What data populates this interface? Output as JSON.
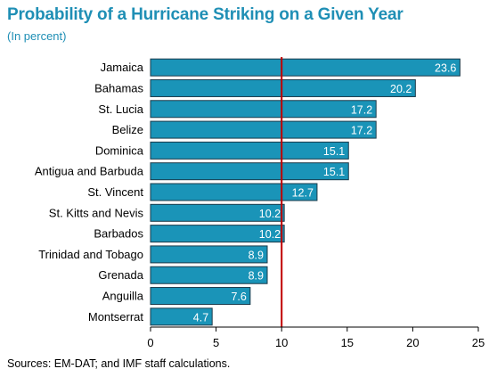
{
  "title": "Probability of a Hurricane Striking on a Given Year",
  "subtitle": "(In percent)",
  "source": "Sources: EM-DAT; and IMF staff calculations.",
  "colors": {
    "title": "#1f8fb5",
    "bar": "#1a94b8",
    "bar_edge": "#1a3a4a",
    "reference_line": "#c00000",
    "axis": "#000000"
  },
  "chart_data": {
    "type": "bar",
    "orientation": "horizontal",
    "categories": [
      "Jamaica",
      "Bahamas",
      "St. Lucia",
      "Belize",
      "Dominica",
      "Antigua and Barbuda",
      "St. Vincent",
      "St. Kitts and Nevis",
      "Barbados",
      "Trinidad and Tobago",
      "Grenada",
      "Anguilla",
      "Montserrat"
    ],
    "values": [
      23.6,
      20.2,
      17.2,
      17.2,
      15.1,
      15.1,
      12.7,
      10.2,
      10.2,
      8.9,
      8.9,
      7.6,
      4.7
    ],
    "data_labels": [
      "23.6",
      "20.2",
      "17.2",
      "17.2",
      "15.1",
      "15.1",
      "12.7",
      "10.2",
      "10.2",
      "8.9",
      "8.9",
      "7.6",
      "4.7"
    ],
    "title": "Probability of a Hurricane Striking on a Given Year",
    "subtitle": "(In percent)",
    "xlabel": "",
    "ylabel": "",
    "xlim": [
      0,
      25
    ],
    "xticks": [
      "0",
      "5",
      "10",
      "15",
      "20",
      "25"
    ],
    "reference_line_x": 10,
    "grid": false,
    "legend": "none"
  }
}
